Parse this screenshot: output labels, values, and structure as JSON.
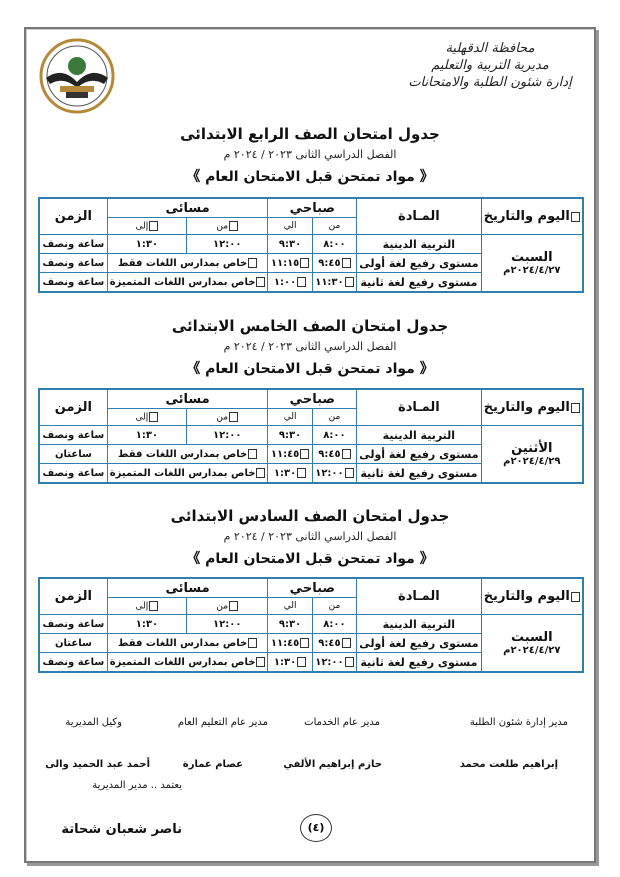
{
  "header": {
    "org_lines": [
      "محافظة الدقهلية",
      "مديرية التربية والتعليم",
      "إدارة شئون الطلبة والامتحانات"
    ],
    "logo_text": "محافظة الدقهلية - إدارة شئون الطلبة والامتحانات"
  },
  "table_headers": {
    "day": "اليوم والتاريخ",
    "subject": "المـادة",
    "morning": "صباحي",
    "evening": "مسائى",
    "from": "من",
    "to": "الي",
    "from_eve": "من",
    "to_eve": "إلى",
    "duration": "الزمن"
  },
  "sections": [
    {
      "title": "جدول امتحان الصف الرابع الابتدائى",
      "term": "الفصل الدراسي الثانى ٢٠٢٣ / ٢٠٢٤ م",
      "banner": "《 مواد تمتحن قبل الامتحان العام 》",
      "day": "السبت",
      "date": "٢٠٢٤/٤/٢٧م",
      "rows": [
        {
          "subject": "التربية الدينية",
          "m_from": "٨:٠٠",
          "m_to": "٩:٣٠",
          "e_from": "١٢:٠٠",
          "e_to": "١:٣٠",
          "duration": "ساعة ونصف"
        },
        {
          "subject": "مستوى رفيع لغة أولى",
          "m_from": "٩:٤٥",
          "m_to": "١١:١٥",
          "note": "خاص بمدارس اللغات فقط",
          "duration": "ساعة ونصف"
        },
        {
          "subject": "مستوى رفيع لغة ثانية",
          "m_from": "١١:٣٠",
          "m_to": "١:٠٠",
          "note": "خاص بمدارس اللغات المتميزة",
          "duration": "ساعة ونصف"
        }
      ]
    },
    {
      "title": "جدول امتحان الصف الخامس الابتدائى",
      "term": "الفصل الدراسي الثانى ٢٠٢٣ / ٢٠٢٤ م",
      "banner": "《 مواد تمتحن قبل الامتحان العام 》",
      "day": "الأثنين",
      "date": "٢٠٢٤/٤/٢٩م",
      "rows": [
        {
          "subject": "التربية الدينية",
          "m_from": "٨:٠٠",
          "m_to": "٩:٣٠",
          "e_from": "١٢:٠٠",
          "e_to": "١:٣٠",
          "duration": "ساعة ونصف"
        },
        {
          "subject": "مستوى رفيع لغة أولى",
          "m_from": "٩:٤٥",
          "m_to": "١١:٤٥",
          "note": "خاص بمدارس اللغات فقط",
          "duration": "ساعتان"
        },
        {
          "subject": "مستوى رفيع لغة ثانية",
          "m_from": "١٢:٠٠",
          "m_to": "١:٣٠",
          "note": "خاص بمدارس اللغات المتميزة",
          "duration": "ساعة ونصف"
        }
      ]
    },
    {
      "title": "جدول امتحان الصف السادس الابتدائى",
      "term": "الفصل الدراسي الثانى ٢٠٢٣ / ٢٠٢٤ م",
      "banner": "《 مواد تمتحن قبل الامتحان العام 》",
      "day": "السبت",
      "date": "٢٠٢٤/٤/٢٧م",
      "rows": [
        {
          "subject": "التربية الدينية",
          "m_from": "٨:٠٠",
          "m_to": "٩:٣٠",
          "e_from": "١٢:٠٠",
          "e_to": "١:٣٠",
          "duration": "ساعة ونصف"
        },
        {
          "subject": "مستوى رفيع لغة أولى",
          "m_from": "٩:٤٥",
          "m_to": "١١:٤٥",
          "note": "خاص بمدارس اللغات فقط",
          "duration": "ساعتان"
        },
        {
          "subject": "مستوى رفيع لغة ثانية",
          "m_from": "١٢:٠٠",
          "m_to": "١:٣٠",
          "note": "خاص بمدارس اللغات المتميزة",
          "duration": "ساعة ونصف"
        }
      ]
    }
  ],
  "signatures": {
    "titles": [
      "مدير إدارة شئون الطلبة",
      "مدير عام الخدمات",
      "مدير عام التعليم العام",
      "وكيل المديرية"
    ],
    "names": [
      "إبراهيم طلعت محمد",
      "حازم إبراهيم الألفي",
      "عصام عمارة",
      "أحمد عبد الحميد والى"
    ],
    "approval": "يعتمد .. مدير المديرية",
    "director": "ناصر شعبان شحاتة"
  },
  "page_number": "(٤)"
}
